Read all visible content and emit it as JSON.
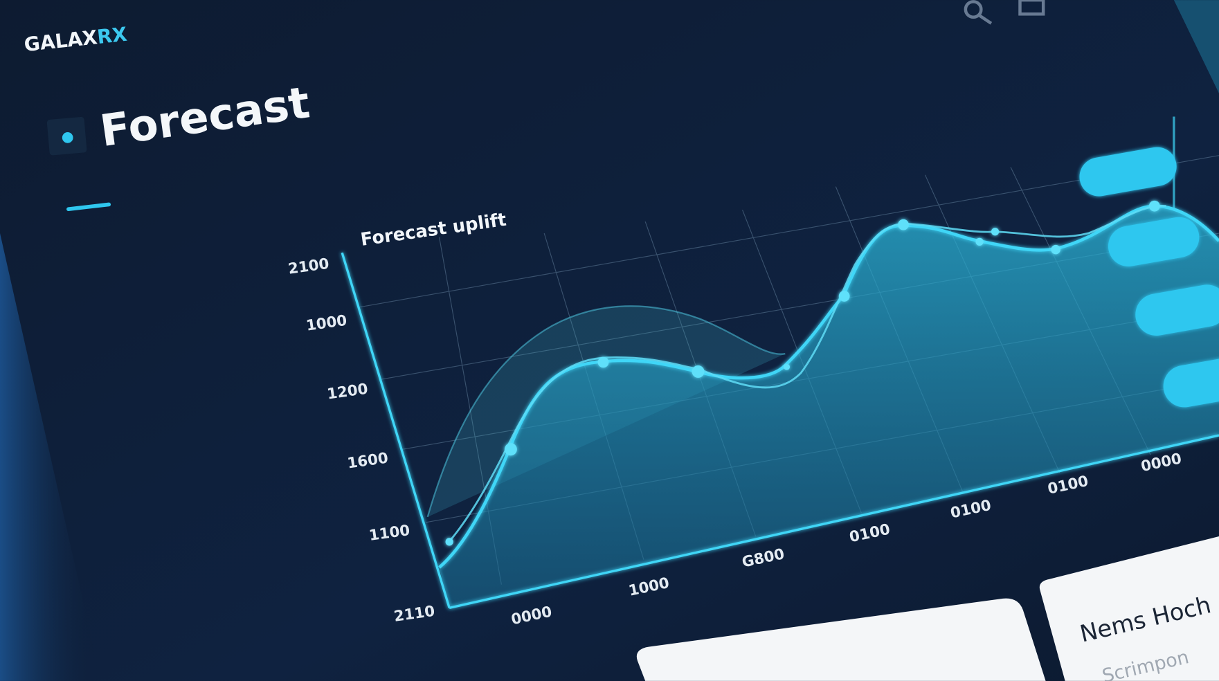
{
  "brand": {
    "name": "GALAX",
    "accent": "RX"
  },
  "header": {
    "title": "Forecast"
  },
  "panel": {
    "title": "Forecast uplift",
    "y_labels": [
      "2100",
      "1000",
      "1200",
      "1600",
      "1100",
      "2110"
    ],
    "x_labels": [
      "0000",
      "1000",
      "G800",
      "0100",
      "0100",
      "0100",
      "0000"
    ]
  },
  "card": {
    "title": "Nems Hoch ar",
    "subtitle": "Scrimpon"
  }
}
